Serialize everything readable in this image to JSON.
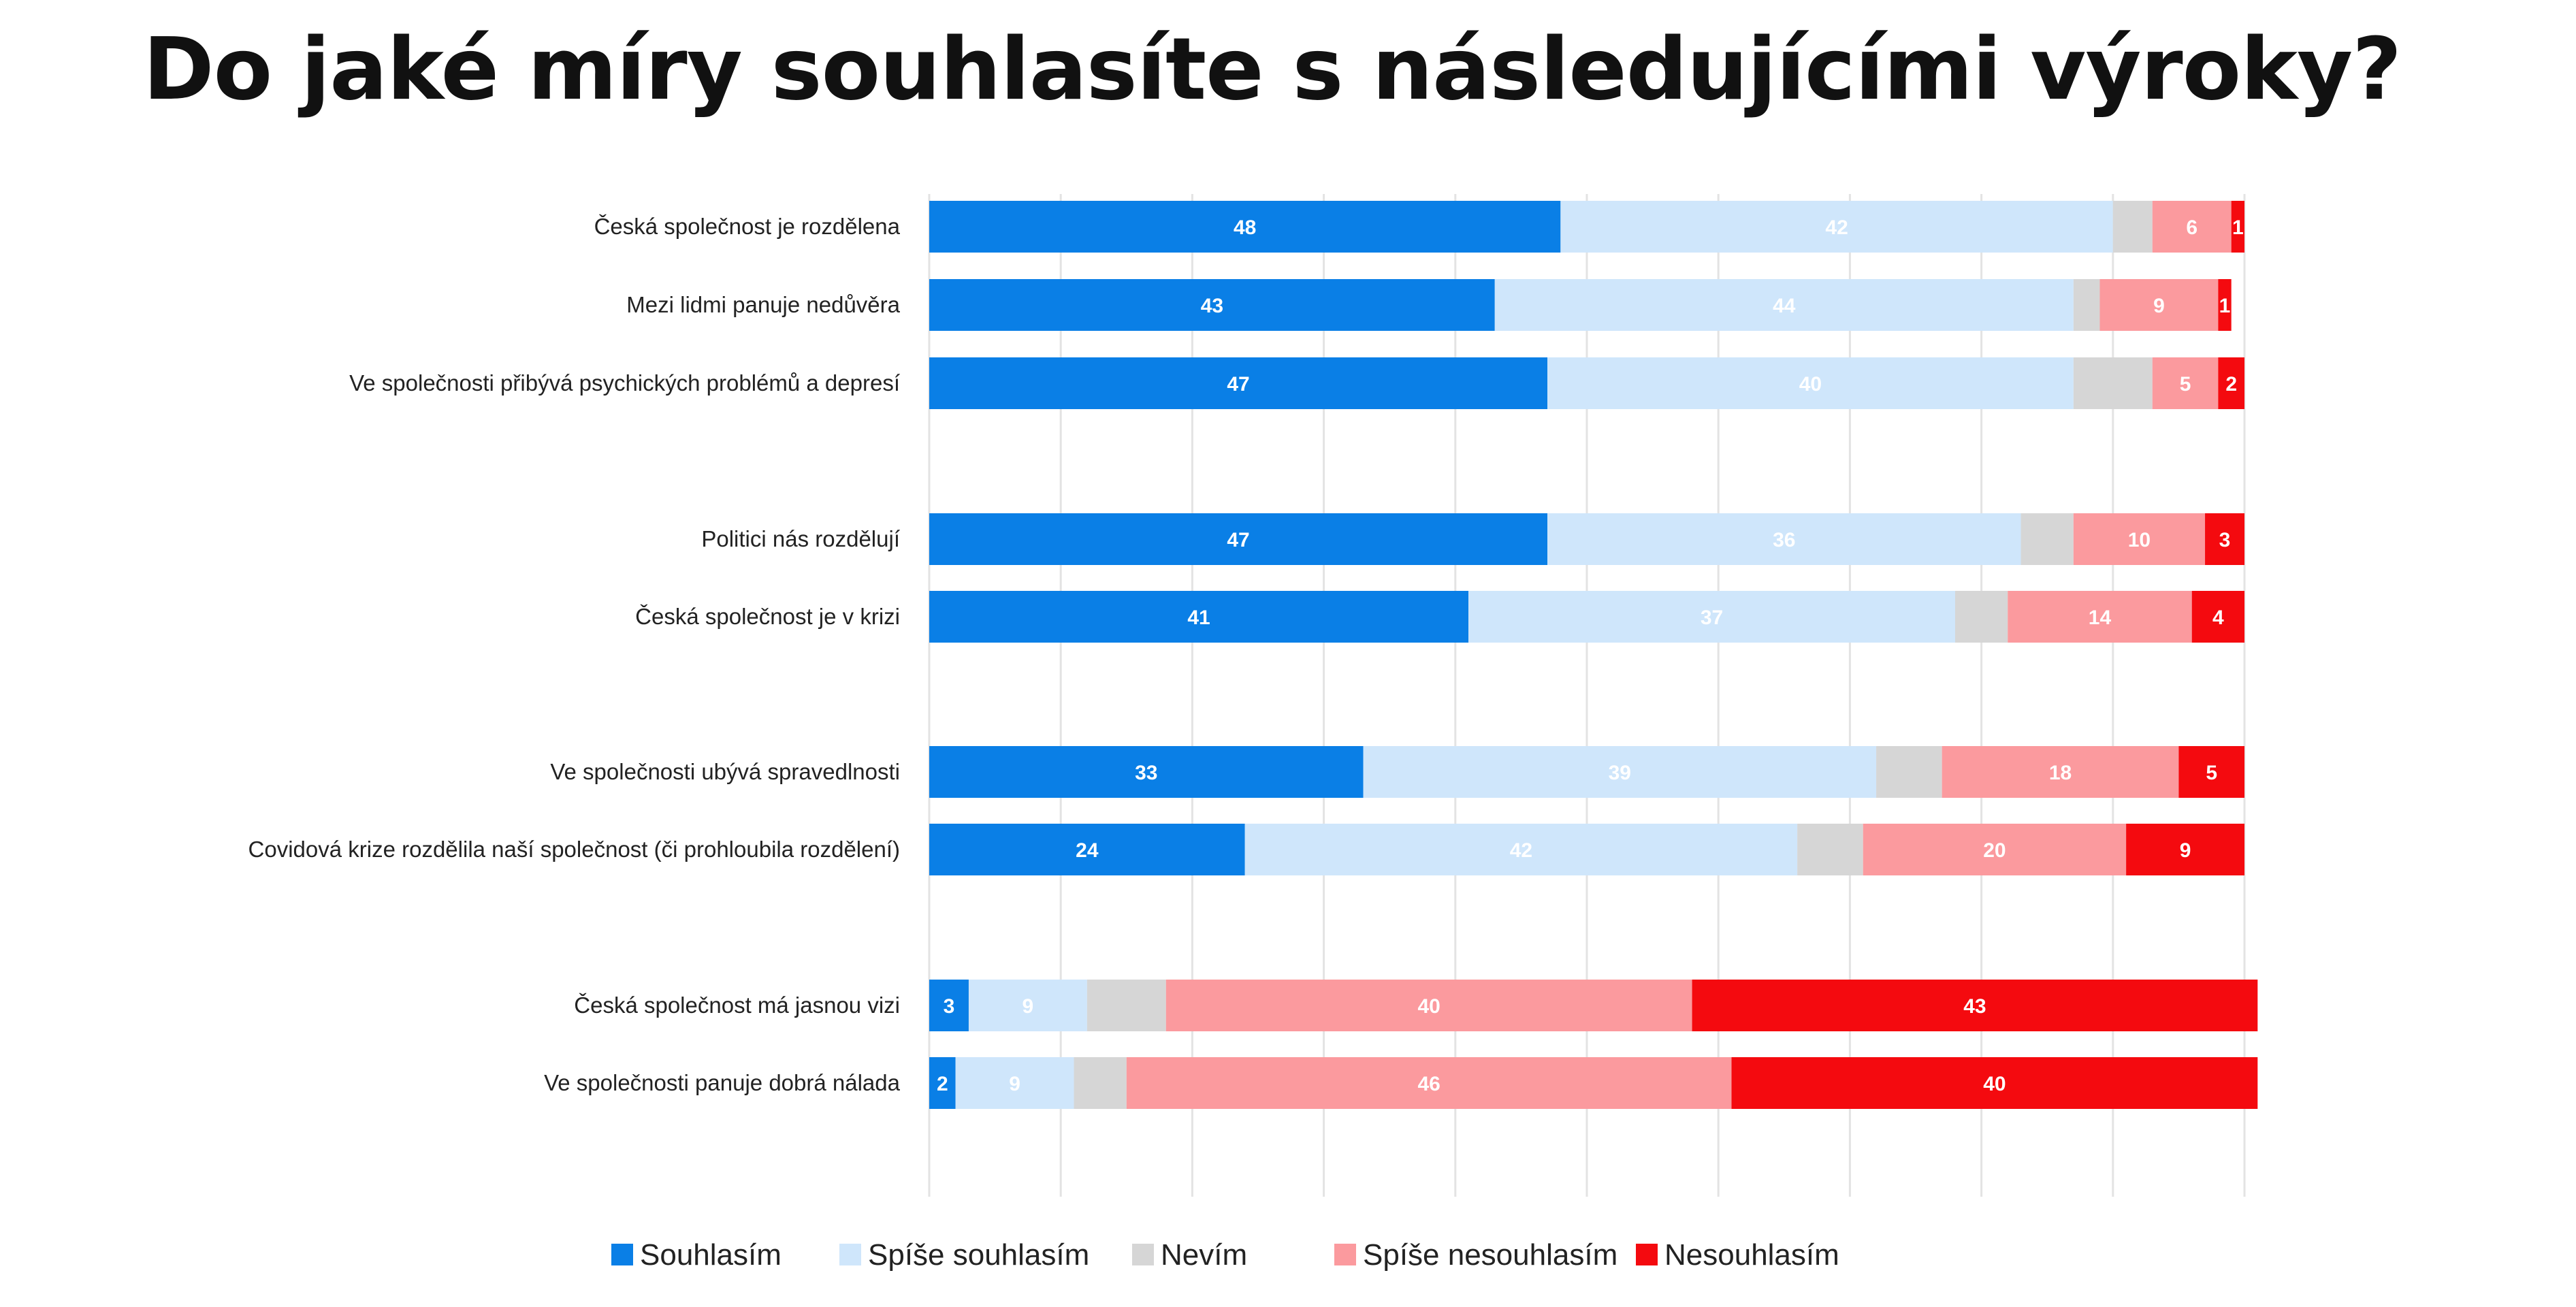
{
  "title": "Do jaké míry souhlasíte s následujícími výroky?",
  "chart_data": {
    "type": "bar",
    "orientation": "horizontal",
    "stacked": true,
    "title": "Do jaké míry souhlasíte s následujícími výroky?",
    "xlim": [
      0,
      100
    ],
    "grid": true,
    "legend_position": "bottom",
    "categories": [
      "Česká společnost je rozdělena",
      "Mezi lidmi panuje nedůvěra",
      "Ve společnosti přibývá psychických problémů a depresí",
      "Politici nás rozdělují",
      "Česká společnost je v krizi",
      "Ve společnosti ubývá spravedlnosti",
      "Covidová krize rozdělila naší společnost (či prohloubila rozdělení)",
      "Česká společnost má jasnou vizi",
      "Ve společnosti panuje dobrá nálada"
    ],
    "groups": [
      [
        0,
        1,
        2
      ],
      [
        3,
        4
      ],
      [
        5,
        6
      ],
      [
        7,
        8
      ]
    ],
    "series": [
      {
        "name": "Souhlasím",
        "color": "#0a7fe6",
        "label_color": "#ffffff",
        "values": [
          48,
          43,
          47,
          47,
          41,
          33,
          24,
          3,
          2
        ]
      },
      {
        "name": "Spíše souhlasím",
        "color": "#cfe6fb",
        "label_color": "#ffffff",
        "values": [
          42,
          44,
          40,
          36,
          37,
          39,
          42,
          9,
          9
        ]
      },
      {
        "name": "Nevím",
        "color": "#d6d6d6",
        "label_color": "#ffffff",
        "values": [
          3,
          2,
          6,
          4,
          4,
          5,
          5,
          6,
          4
        ]
      },
      {
        "name": "Spíše nesouhlasím",
        "color": "#fb9a9e",
        "label_color": "#ffffff",
        "values": [
          6,
          9,
          5,
          10,
          14,
          18,
          20,
          40,
          46
        ]
      },
      {
        "name": "Nesouhlasím",
        "color": "#f40a0f",
        "label_color": "#ffffff",
        "values": [
          1,
          1,
          2,
          3,
          4,
          5,
          9,
          43,
          40
        ]
      }
    ],
    "labeled": [
      [
        true,
        true,
        true,
        true,
        true,
        true,
        true,
        true,
        true
      ],
      [
        true,
        true,
        true,
        true,
        true,
        true,
        true,
        true,
        true
      ],
      [
        false,
        false,
        false,
        false,
        false,
        false,
        false,
        false,
        false
      ],
      [
        true,
        true,
        true,
        true,
        true,
        true,
        true,
        true,
        true
      ],
      [
        true,
        true,
        true,
        true,
        true,
        true,
        true,
        true,
        true
      ]
    ]
  }
}
